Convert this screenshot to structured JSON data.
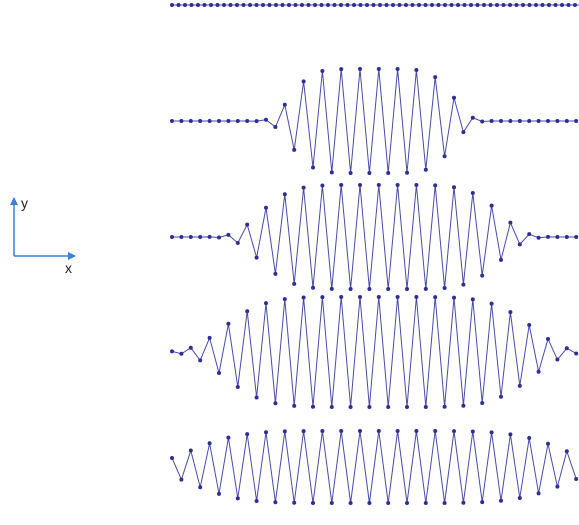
{
  "axes": {
    "y_label": "y",
    "x_label": "x"
  }
}
